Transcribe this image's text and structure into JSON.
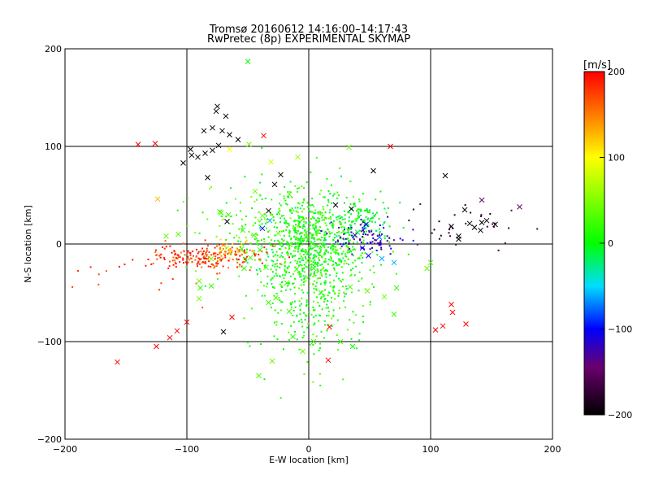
{
  "chart_data": {
    "type": "scatter",
    "title": "Tromsø 20160612 14:16:00–14:17:43",
    "subtitle": "RwPretec (8p) EXPERIMENTAL SKYMAP",
    "xlabel": "E-W location [km]",
    "ylabel": "N-S location [km]",
    "xlim": [
      -200,
      200
    ],
    "ylim": [
      -200,
      200
    ],
    "x_ticks": [
      -200,
      -100,
      0,
      100,
      200
    ],
    "y_ticks": [
      -200,
      -100,
      0,
      100,
      200
    ],
    "x_tick_labels": [
      "−200",
      "−100",
      "0",
      "100",
      "200"
    ],
    "y_tick_labels": [
      "−200",
      "−100",
      "0",
      "100",
      "200"
    ],
    "grid_lines": [
      -100,
      0,
      100
    ],
    "colorbar": {
      "unit": "[m/s]",
      "range": [
        -200,
        200
      ],
      "ticks": [
        200,
        100,
        0,
        -100,
        -200
      ],
      "tick_labels": [
        "200",
        "100",
        "0",
        "−100",
        "−200"
      ],
      "colormap": "black-purple-blue-cyan-green-yellow-red"
    },
    "series": [
      {
        "marker": "x",
        "points": [
          [
            -50,
            187,
            0
          ],
          [
            -140,
            102,
            200
          ],
          [
            -126,
            103,
            200
          ],
          [
            -37,
            111,
            200
          ],
          [
            67,
            100,
            200
          ],
          [
            -96,
            91,
            -200
          ],
          [
            -86,
            116,
            -200
          ],
          [
            -79,
            119,
            -200
          ],
          [
            -76,
            136,
            -200
          ],
          [
            -75,
            141,
            -200
          ],
          [
            -68,
            131,
            -200
          ],
          [
            -71,
            116,
            -200
          ],
          [
            -65,
            112,
            -200
          ],
          [
            -58,
            107,
            -200
          ],
          [
            -97,
            97,
            -200
          ],
          [
            -91,
            89,
            -200
          ],
          [
            -85,
            93,
            -200
          ],
          [
            -79,
            96,
            -200
          ],
          [
            -74,
            101,
            -200
          ],
          [
            -103,
            83,
            -200
          ],
          [
            -83,
            68,
            -200
          ],
          [
            -23,
            71,
            -200
          ],
          [
            -33,
            34,
            -200
          ],
          [
            -67,
            23,
            -200
          ],
          [
            -28,
            61,
            -200
          ],
          [
            -65,
            97,
            100
          ],
          [
            -31,
            84,
            80
          ],
          [
            -9,
            89,
            60
          ],
          [
            -49,
            102,
            40
          ],
          [
            -44,
            54,
            40
          ],
          [
            -72,
            32,
            20
          ],
          [
            -66,
            30,
            20
          ],
          [
            -124,
            46,
            130
          ],
          [
            -16,
            51,
            30
          ],
          [
            -38,
            29,
            40
          ],
          [
            -32,
            24,
            -60
          ],
          [
            22,
            40,
            -200
          ],
          [
            35,
            36,
            -200
          ],
          [
            53,
            75,
            -200
          ],
          [
            40,
            12,
            -20
          ],
          [
            112,
            70,
            -200
          ],
          [
            117,
            18,
            -200
          ],
          [
            123,
            8,
            -200
          ],
          [
            128,
            35,
            -200
          ],
          [
            132,
            21,
            -200
          ],
          [
            136,
            17,
            -200
          ],
          [
            142,
            45,
            -150
          ],
          [
            173,
            38,
            -150
          ],
          [
            142,
            22,
            -200
          ],
          [
            146,
            24,
            -200
          ],
          [
            153,
            20,
            -200
          ],
          [
            141,
            14,
            -200
          ],
          [
            123,
            5,
            -200
          ],
          [
            60,
            -15,
            -60
          ],
          [
            70,
            -19,
            -60
          ],
          [
            100,
            -19,
            30
          ],
          [
            97,
            -25,
            40
          ],
          [
            72,
            -45,
            20
          ],
          [
            62,
            -54,
            40
          ],
          [
            48,
            -48,
            40
          ],
          [
            117,
            -62,
            200
          ],
          [
            118,
            -70,
            200
          ],
          [
            110,
            -84,
            200
          ],
          [
            104,
            -88,
            200
          ],
          [
            129,
            -82,
            200
          ],
          [
            17,
            -85,
            200
          ],
          [
            -63,
            -75,
            200
          ],
          [
            -100,
            -80,
            200
          ],
          [
            -108,
            -89,
            200
          ],
          [
            -114,
            -96,
            200
          ],
          [
            -125,
            -105,
            200
          ],
          [
            -157,
            -121,
            200
          ],
          [
            16,
            -119,
            200
          ],
          [
            -70,
            -90,
            -200
          ],
          [
            -90,
            -56,
            40
          ],
          [
            -90,
            -38,
            40
          ],
          [
            -89,
            -45,
            20
          ],
          [
            -80,
            -43,
            20
          ],
          [
            -53,
            -25,
            20
          ],
          [
            -35,
            -24,
            20
          ],
          [
            -33,
            -60,
            20
          ],
          [
            -18,
            -40,
            20
          ],
          [
            -13,
            -95,
            20
          ],
          [
            -5,
            -110,
            40
          ],
          [
            4,
            -100,
            20
          ],
          [
            -30,
            -120,
            40
          ],
          [
            -41,
            -135,
            30
          ],
          [
            -27,
            -55,
            30
          ],
          [
            -16,
            -69,
            20
          ],
          [
            10,
            -50,
            20
          ],
          [
            26,
            -100,
            20
          ],
          [
            36,
            -105,
            0
          ],
          [
            70,
            -72,
            20
          ],
          [
            -38,
            16,
            -100
          ],
          [
            -45,
            9,
            20
          ],
          [
            -55,
            -5,
            20
          ],
          [
            -48,
            -14,
            20
          ],
          [
            -40,
            -6,
            20
          ],
          [
            44,
            -4,
            -100
          ],
          [
            49,
            -12,
            -100
          ],
          [
            58,
            7,
            -80
          ],
          [
            33,
            99,
            40
          ],
          [
            -73,
            33,
            30
          ],
          [
            -54,
            14,
            20
          ],
          [
            -80,
            -15,
            40
          ],
          [
            38,
            9,
            -120
          ],
          [
            47,
            20,
            -100
          ],
          [
            -117,
            8,
            40
          ],
          [
            -107,
            10,
            40
          ],
          [
            -25,
            11,
            40
          ],
          [
            -10,
            -26,
            20
          ],
          [
            4,
            -25,
            20
          ],
          [
            34,
            -44,
            20
          ]
        ]
      },
      {
        "marker": "dot",
        "clusters": [
          {
            "name": "central",
            "center": [
              0,
              0
            ],
            "spread": [
              25,
              28
            ],
            "count": 900,
            "value_range": [
              -20,
              40
            ]
          },
          {
            "name": "southern-tail",
            "center": [
              5,
              -55
            ],
            "spread": [
              22,
              35
            ],
            "count": 200,
            "value_range": [
              -10,
              40
            ]
          },
          {
            "name": "west-red-band",
            "center": [
              -85,
              -14
            ],
            "spread": [
              22,
              6
            ],
            "count": 200,
            "value_range": [
              150,
              200
            ]
          },
          {
            "name": "orange-patch",
            "center": [
              -62,
              -5
            ],
            "spread": [
              7,
              5
            ],
            "count": 40,
            "value_range": [
              110,
              160
            ]
          },
          {
            "name": "east-blue-band",
            "center": [
              50,
              5
            ],
            "spread": [
              15,
              8
            ],
            "count": 90,
            "value_range": [
              -150,
              -90
            ]
          },
          {
            "name": "east-cyan",
            "center": [
              45,
              25
            ],
            "spread": [
              12,
              10
            ],
            "count": 80,
            "value_range": [
              -30,
              10
            ]
          },
          {
            "name": "west-green",
            "center": [
              -55,
              20
            ],
            "spread": [
              25,
              20
            ],
            "count": 70,
            "value_range": [
              0,
              60
            ]
          },
          {
            "name": "far-east-dark",
            "center": [
              130,
              20
            ],
            "spread": [
              25,
              12
            ],
            "count": 30,
            "value_range": [
              -200,
              -150
            ]
          },
          {
            "name": "scattered-red",
            "center": [
              -120,
              -25
            ],
            "spread": [
              35,
              20
            ],
            "count": 25,
            "value_range": [
              160,
              200
            ]
          }
        ]
      }
    ]
  }
}
